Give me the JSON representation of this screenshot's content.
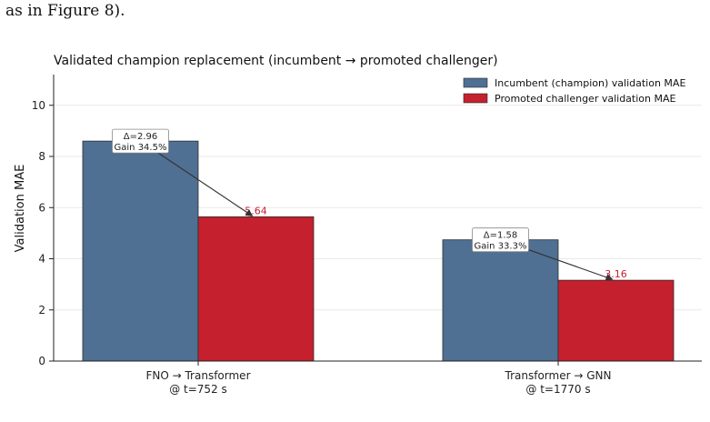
{
  "page": {
    "doc_text": "as in Figure 8)."
  },
  "colors": {
    "incumbent": "#4f6f93",
    "challenger": "#c5202e",
    "value_label": "#c5202e",
    "grid": "#e9e9e9",
    "axis": "#222222"
  },
  "chart_data": {
    "type": "bar",
    "title": "Validated champion replacement (incumbent → promoted challenger)",
    "xlabel": "",
    "ylabel": "Validation MAE",
    "ylim": [
      0,
      11.2
    ],
    "yticks": [
      0,
      2,
      4,
      6,
      8,
      10
    ],
    "grid": true,
    "legend_position": "top-right",
    "categories": [
      [
        "FNO → Transformer",
        "@ t=752 s"
      ],
      [
        "Transformer → GNN",
        "@ t=1770 s"
      ]
    ],
    "series": [
      {
        "name": "Incumbent (champion) validation MAE",
        "values": [
          8.6,
          4.74
        ]
      },
      {
        "name": "Promoted challenger validation MAE",
        "values": [
          5.64,
          3.16
        ]
      }
    ],
    "value_labels": [
      "5.64",
      "3.16"
    ],
    "annotations": [
      [
        "Δ=2.96",
        "Gain 34.5%"
      ],
      [
        "Δ=1.58",
        "Gain 33.3%"
      ]
    ]
  }
}
